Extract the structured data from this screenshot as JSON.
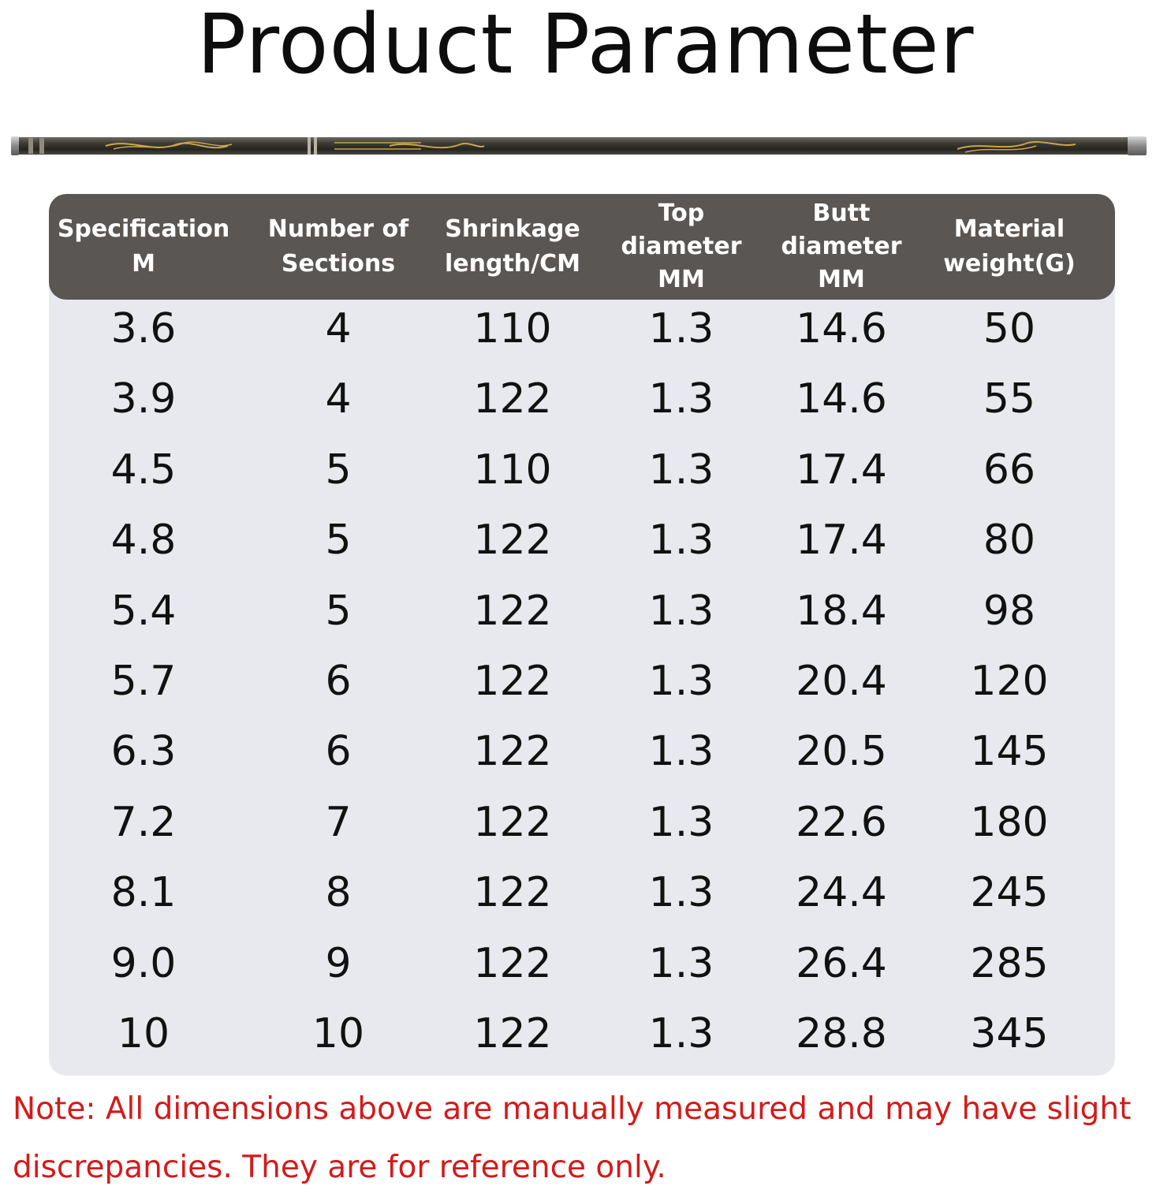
{
  "title": "Product Parameter",
  "rod_image": {
    "icon": "fishing-rod-image",
    "colors": {
      "body": "#3b3a35",
      "ornament": "#c9a64a",
      "cap": "#9a9a9a"
    }
  },
  "table": {
    "header_bg": "#5a5654",
    "body_bg": "#e8e9ee",
    "columns": [
      {
        "lines": [
          "Specification",
          "M"
        ]
      },
      {
        "lines": [
          "Number of",
          "Sections"
        ]
      },
      {
        "lines": [
          "Shrinkage",
          "length/CM"
        ]
      },
      {
        "lines": [
          "Top",
          "diameter",
          "MM"
        ]
      },
      {
        "lines": [
          "Butt",
          "diameter",
          "MM"
        ]
      },
      {
        "lines": [
          "Material",
          "weight(G)"
        ]
      }
    ],
    "rows": [
      [
        "3.6",
        "4",
        "110",
        "1.3",
        "14.6",
        "50"
      ],
      [
        "3.9",
        "4",
        "122",
        "1.3",
        "14.6",
        "55"
      ],
      [
        "4.5",
        "5",
        "110",
        "1.3",
        "17.4",
        "66"
      ],
      [
        "4.8",
        "5",
        "122",
        "1.3",
        "17.4",
        "80"
      ],
      [
        "5.4",
        "5",
        "122",
        "1.3",
        "18.4",
        "98"
      ],
      [
        "5.7",
        "6",
        "122",
        "1.3",
        "20.4",
        "120"
      ],
      [
        "6.3",
        "6",
        "122",
        "1.3",
        "20.5",
        "145"
      ],
      [
        "7.2",
        "7",
        "122",
        "1.3",
        "22.6",
        "180"
      ],
      [
        "8.1",
        "8",
        "122",
        "1.3",
        "24.4",
        "245"
      ],
      [
        "9.0",
        "9",
        "122",
        "1.3",
        "26.4",
        "285"
      ],
      [
        "10",
        "10",
        "122",
        "1.3",
        "28.8",
        "345"
      ]
    ]
  },
  "note": {
    "line1": "Note: All dimensions above are manually measured and may have slight",
    "line2": "discrepancies. They are for reference only.",
    "color": "#d41a1a"
  }
}
